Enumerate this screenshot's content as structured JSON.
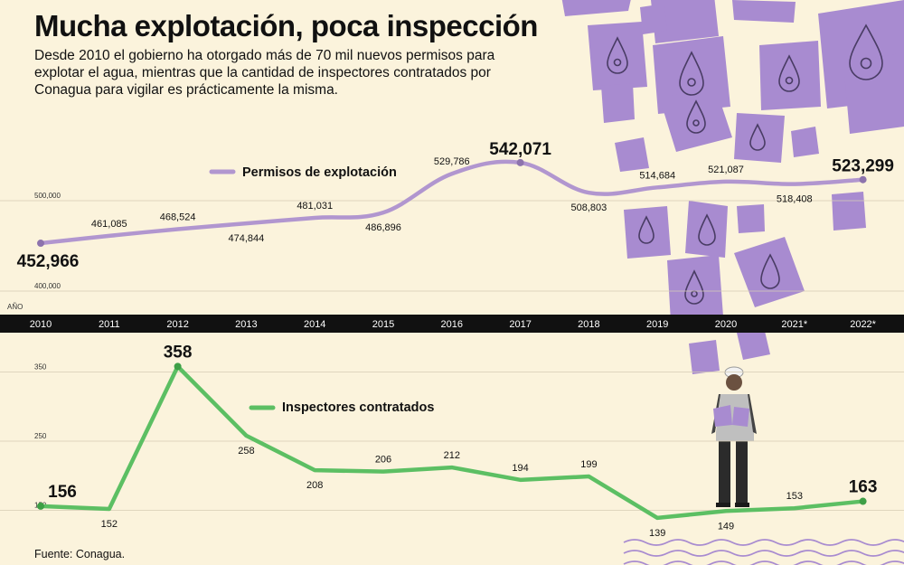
{
  "header": {
    "title": "Mucha explotación, poca inspección",
    "subtitle": "Desde 2010 el gobierno ha otorgado más de 70 mil nuevos permisos para explotar el agua, mientras que la cantidad de inspectores contratados por Conagua para vigilar es prácticamente la misma."
  },
  "footer": {
    "source": "Fuente: Conagua."
  },
  "colors": {
    "background": "#fbf3dc",
    "permisos": "#b196cf",
    "inspectores": "#5cbf63",
    "year_bar": "#111111",
    "illustration_purple": "#a88bd0"
  },
  "decorations": {
    "illustration": "falling-water-permit-papers-and-inspector-icon"
  },
  "chart_data": [
    {
      "type": "line",
      "series_label": "Permisos de explotación",
      "axis_label": "AÑO",
      "years": [
        "2010",
        "2011",
        "2012",
        "2013",
        "2014",
        "2015",
        "2016",
        "2017",
        "2018",
        "2019",
        "2020",
        "2021*",
        "2022*"
      ],
      "values": [
        452966,
        461085,
        468524,
        474844,
        481031,
        486896,
        529786,
        542071,
        508803,
        514684,
        521087,
        518408,
        523299
      ],
      "labels": [
        "452,966",
        "461,085",
        "468,524",
        "474,844",
        "481,031",
        "486,896",
        "529,786",
        "542,071",
        "508,803",
        "514,684",
        "521,087",
        "518,408",
        "523,299"
      ],
      "yticks": [
        400000,
        500000
      ],
      "ytick_labels": [
        "400,000",
        "500,000"
      ],
      "highlight": [
        "2010",
        "2017",
        "2022*"
      ],
      "grid": true,
      "legend": "top-left"
    },
    {
      "type": "line",
      "series_label": "Inspectores contratados",
      "years": [
        "2010",
        "2011",
        "2012",
        "2013",
        "2014",
        "2015",
        "2016",
        "2017",
        "2018",
        "2019",
        "2020",
        "2021*",
        "2022*"
      ],
      "values": [
        156,
        152,
        358,
        258,
        208,
        206,
        212,
        194,
        199,
        139,
        149,
        153,
        163
      ],
      "labels": [
        "156",
        "152",
        "358",
        "258",
        "208",
        "206",
        "212",
        "194",
        "199",
        "139",
        "149",
        "153",
        "163"
      ],
      "yticks": [
        150,
        250,
        350
      ],
      "ytick_labels": [
        "150",
        "250",
        "350"
      ],
      "highlight": [
        "2010",
        "2012",
        "2022*"
      ],
      "grid": true,
      "legend": "center"
    }
  ]
}
